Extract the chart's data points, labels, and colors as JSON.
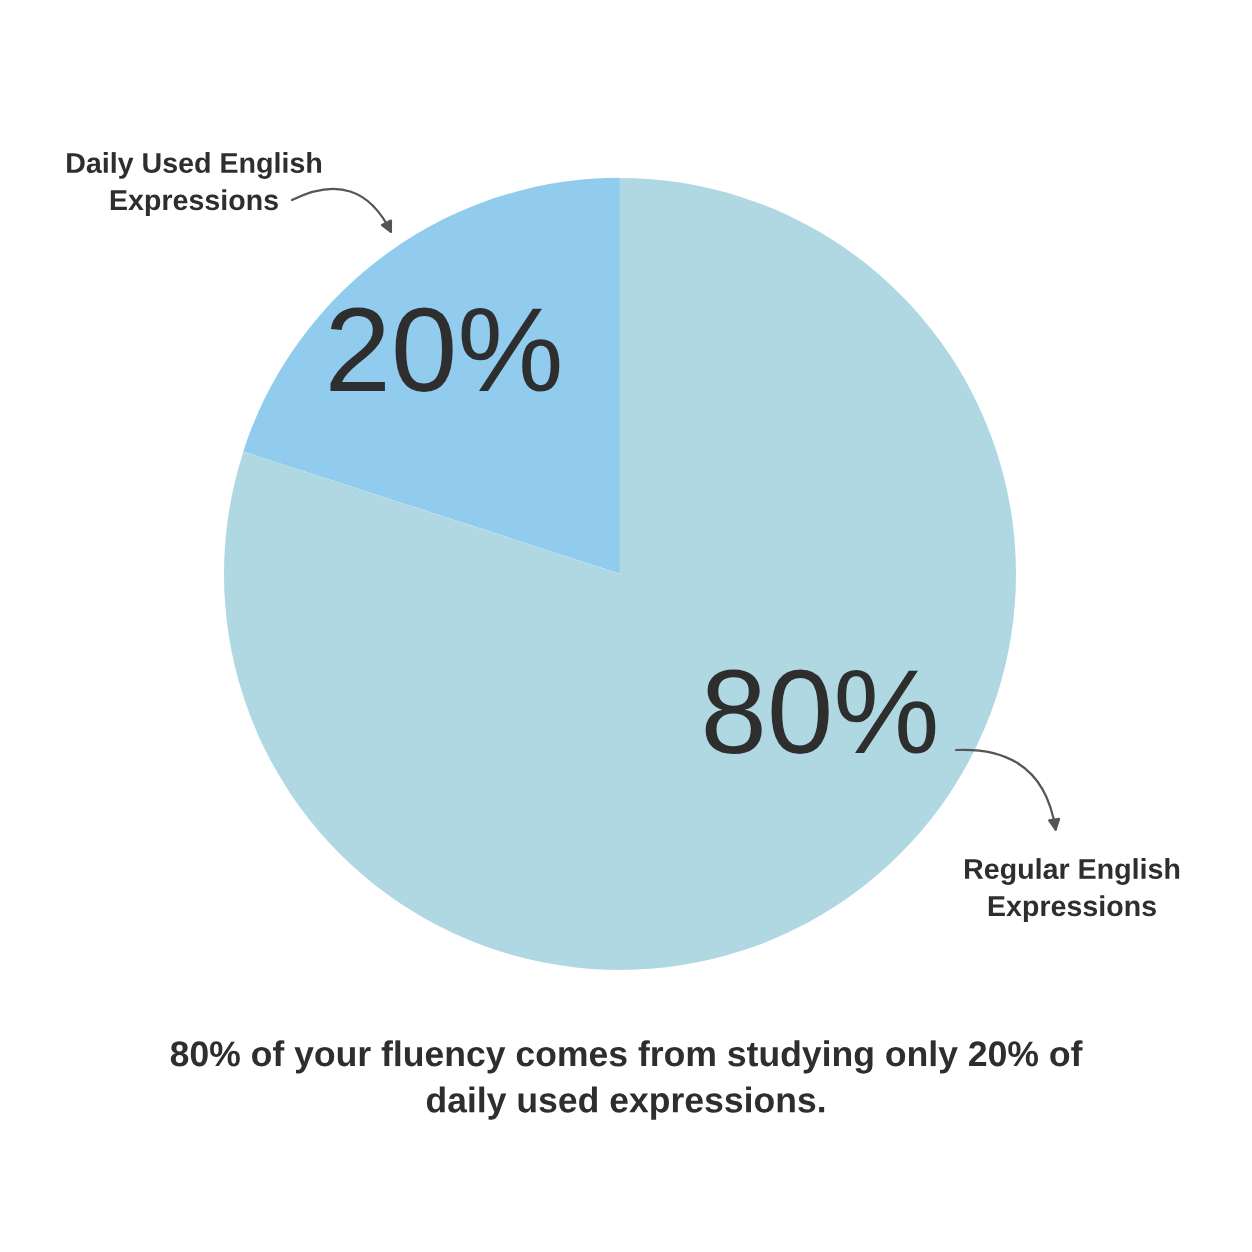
{
  "chart_data": {
    "type": "pie",
    "categories": [
      "Daily Used English Expressions",
      "Regular English Expressions"
    ],
    "values": [
      20,
      80
    ],
    "colors": [
      "#91cbee",
      "#afd8e3"
    ],
    "value_labels": [
      "20%",
      "80%"
    ],
    "annotations": [
      "80% of your fluency comes from studying only 20% of daily used expressions."
    ]
  }
}
